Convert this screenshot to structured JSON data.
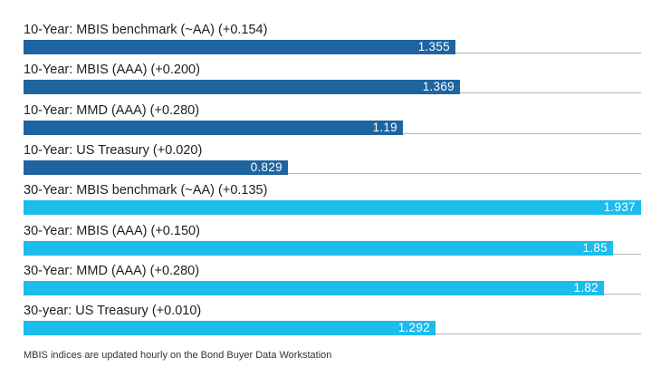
{
  "chart_data": {
    "type": "bar",
    "orientation": "horizontal",
    "categories": [
      "10-Year: MBIS benchmark (~AA) (+0.154)",
      "10-Year: MBIS (AAA) (+0.200)",
      "10-Year: MMD (AAA) (+0.280)",
      "10-Year: US Treasury (+0.020)",
      "30-Year: MBIS benchmark (~AA) (+0.135)",
      "30-Year: MBIS (AAA) (+0.150)",
      "30-Year: MMD (AAA) (+0.280)",
      "30-year: US Treasury (+0.010)"
    ],
    "values": [
      1.355,
      1.369,
      1.19,
      0.829,
      1.937,
      1.85,
      1.82,
      1.292
    ],
    "value_labels": [
      "1.355",
      "1.369",
      "1.19",
      "0.829",
      "1.937",
      "1.85",
      "1.82",
      "1.292"
    ],
    "groups": [
      "10-Year",
      "10-Year",
      "10-Year",
      "10-Year",
      "30-Year",
      "30-Year",
      "30-Year",
      "30-Year"
    ],
    "colors": {
      "10-Year": "#1e64a0",
      "30-Year": "#1cbcec"
    },
    "xlim": [
      0,
      1.937
    ],
    "grid": false,
    "title": "",
    "xlabel": "",
    "ylabel": ""
  },
  "footnote": "MBIS indices are updated hourly on the Bond Buyer Data Workstation"
}
